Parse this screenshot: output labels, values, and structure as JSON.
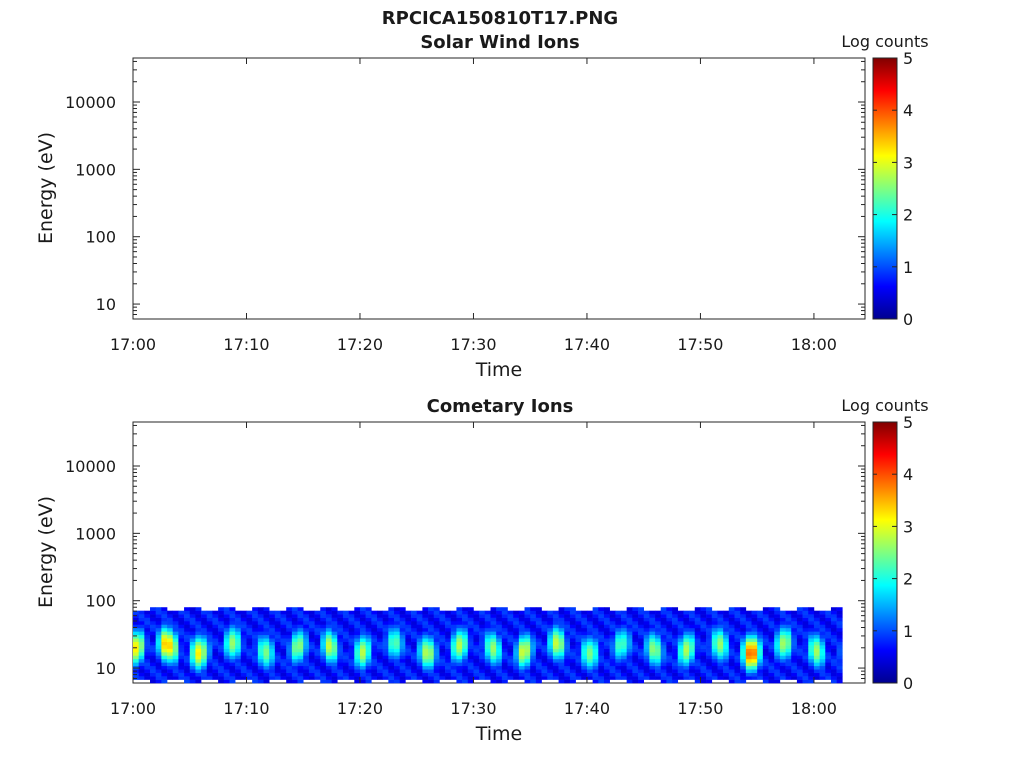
{
  "figure": {
    "title": "RPCICA150810T17.PNG"
  },
  "chart_data": [
    {
      "type": "heatmap",
      "title": "Solar Wind Ions",
      "xlabel": "Time",
      "ylabel": "Energy (eV)",
      "x_ticks": [
        "17:00",
        "17:10",
        "17:20",
        "17:30",
        "17:40",
        "17:50",
        "18:00"
      ],
      "x_range_minutes": [
        0,
        64.5
      ],
      "y_scale": "log",
      "y_ticks": [
        10,
        100,
        1000,
        10000
      ],
      "y_tick_labels": [
        "10",
        "100",
        "1000",
        "10000"
      ],
      "y_range": [
        6,
        45000
      ],
      "colorbar": {
        "label": "Log counts",
        "ticks": [
          "0",
          "1",
          "2",
          "3",
          "4",
          "5"
        ],
        "range": [
          0,
          5
        ],
        "colormap": "jet"
      },
      "data_description": "empty",
      "columns": []
    },
    {
      "type": "heatmap",
      "title": "Cometary Ions",
      "xlabel": "Time",
      "ylabel": "Energy (eV)",
      "x_ticks": [
        "17:00",
        "17:10",
        "17:20",
        "17:30",
        "17:40",
        "17:50",
        "18:00"
      ],
      "x_range_minutes": [
        0,
        64.5
      ],
      "y_scale": "log",
      "y_ticks": [
        10,
        100,
        1000,
        10000
      ],
      "y_tick_labels": [
        "10",
        "100",
        "1000",
        "10000"
      ],
      "y_range": [
        6,
        45000
      ],
      "colorbar": {
        "label": "Log counts",
        "ticks": [
          "0",
          "1",
          "2",
          "3",
          "4",
          "5"
        ],
        "range": [
          0,
          5
        ],
        "colormap": "jet"
      },
      "energy_range_eV": [
        6,
        80
      ],
      "data_end_minute": 62.2,
      "columns_minute_peak_logcounts": [
        [
          0.0,
          3.2
        ],
        [
          1.0,
          3.4
        ],
        [
          2.0,
          4.3
        ],
        [
          3.0,
          3.4
        ],
        [
          4.0,
          4.5
        ],
        [
          5.0,
          3.9
        ],
        [
          6.0,
          2.8
        ],
        [
          7.0,
          2.6
        ],
        [
          8.0,
          2.7
        ],
        [
          9.0,
          2.6
        ],
        [
          10.0,
          2.6
        ],
        [
          11.0,
          2.5
        ],
        [
          12.0,
          2.5
        ],
        [
          13.0,
          2.4
        ],
        [
          14.0,
          2.6
        ],
        [
          15.0,
          2.7
        ],
        [
          16.0,
          2.5
        ],
        [
          17.0,
          2.9
        ],
        [
          18.0,
          2.5
        ],
        [
          19.0,
          2.6
        ],
        [
          20.0,
          2.8
        ],
        [
          21.0,
          2.6
        ],
        [
          22.0,
          2.5
        ],
        [
          23.0,
          2.3
        ],
        [
          24.0,
          2.2
        ],
        [
          25.0,
          2.9
        ],
        [
          26.0,
          2.8
        ],
        [
          27.0,
          2.8
        ],
        [
          28.0,
          2.9
        ],
        [
          29.0,
          2.7
        ],
        [
          30.0,
          2.6
        ],
        [
          31.0,
          2.5
        ],
        [
          32.0,
          2.8
        ],
        [
          33.0,
          2.9
        ],
        [
          34.0,
          3.1
        ],
        [
          35.0,
          2.6
        ],
        [
          36.0,
          2.7
        ],
        [
          37.0,
          2.9
        ],
        [
          38.0,
          2.8
        ],
        [
          39.0,
          2.6
        ],
        [
          40.0,
          2.5
        ],
        [
          41.0,
          2.8
        ],
        [
          42.0,
          2.7
        ],
        [
          43.0,
          2.2
        ],
        [
          44.0,
          2.5
        ],
        [
          45.0,
          2.7
        ],
        [
          46.0,
          2.6
        ],
        [
          47.0,
          2.8
        ],
        [
          48.0,
          2.8
        ],
        [
          49.0,
          2.7
        ],
        [
          50.0,
          2.6
        ],
        [
          51.0,
          2.5
        ],
        [
          52.0,
          2.8
        ],
        [
          53.0,
          3.9
        ],
        [
          54.0,
          4.1
        ],
        [
          55.0,
          3.8
        ],
        [
          56.0,
          2.9
        ],
        [
          57.0,
          2.7
        ],
        [
          58.0,
          2.8
        ],
        [
          59.0,
          2.6
        ],
        [
          60.0,
          2.7
        ],
        [
          61.0,
          2.5
        ],
        [
          62.0,
          2.4
        ]
      ]
    }
  ]
}
